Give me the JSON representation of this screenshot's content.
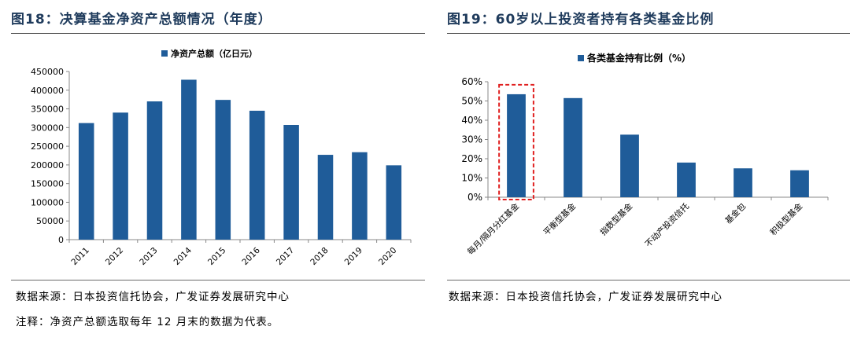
{
  "left": {
    "title": "图18：决算基金净资产总额情况（年度）",
    "source": "数据来源：日本投资信托协会，广发证券发展研究中心",
    "note": "注释：净资产总额选取每年 12 月末的数据为代表。",
    "chart_data": {
      "type": "bar",
      "title": "",
      "xlabel": "",
      "ylabel": "",
      "legend": "top",
      "ylim": [
        0,
        450000
      ],
      "yticks": [
        0,
        50000,
        100000,
        150000,
        200000,
        250000,
        300000,
        350000,
        400000,
        450000
      ],
      "categories": [
        "2011",
        "2012",
        "2013",
        "2014",
        "2015",
        "2016",
        "2017",
        "2018",
        "2019",
        "2020"
      ],
      "series": [
        {
          "name": "净资产总额（亿日元）",
          "values": [
            312000,
            340000,
            370000,
            428000,
            374000,
            345000,
            307000,
            227000,
            234000,
            199000
          ]
        }
      ],
      "grid": false,
      "bar_color": "#1f5c99"
    }
  },
  "right": {
    "title": "图19：60岁以上投资者持有各类基金比例",
    "source": "数据来源：日本投资信托协会，广发证券发展研究中心",
    "chart_data": {
      "type": "bar",
      "title": "",
      "xlabel": "",
      "ylabel": "",
      "legend": "top",
      "ylim": [
        0,
        60
      ],
      "yticks": [
        0,
        10,
        20,
        30,
        40,
        50,
        60
      ],
      "ytick_suffix": "%",
      "categories": [
        "每月/隔月分红基金",
        "平衡型基金",
        "指数型基金",
        "不动产投资信托",
        "基金包",
        "积极型基金"
      ],
      "series": [
        {
          "name": "各类基金持有比例（%）",
          "values": [
            53.5,
            51.5,
            32.5,
            18,
            15,
            14
          ]
        }
      ],
      "highlight_index": 0,
      "highlight_color": "#e02020",
      "grid": false,
      "bar_color": "#1f5c99"
    }
  }
}
